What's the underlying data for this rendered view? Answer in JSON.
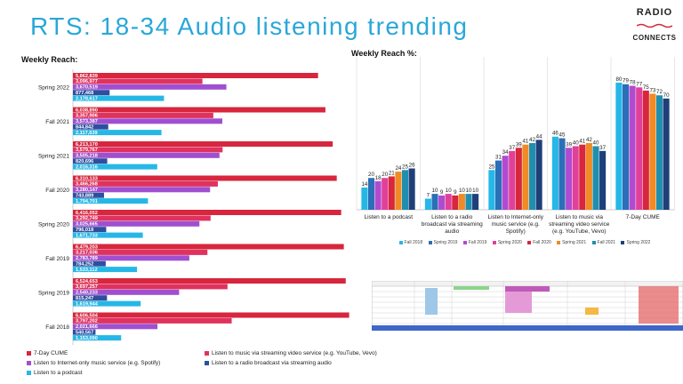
{
  "title": "RTS: 18-34 Audio listening trending",
  "logo": {
    "line1": "RADIO",
    "line2": "CONNECTS"
  },
  "colors": {
    "cume": "#d7263d",
    "video": "#b04bd0",
    "internet": "#9b6fd6",
    "broadcast": "#2e4f9e",
    "podcast": "#26b7e6"
  },
  "chart_data": [
    {
      "type": "bar",
      "orientation": "horizontal",
      "title": "Weekly Reach:",
      "categories": [
        "Spring 2022",
        "Fall 2021",
        "Spring 2021",
        "Fall 2020",
        "Spring 2020",
        "Fall 2019",
        "Spring 2019",
        "Fall 2018"
      ],
      "series": [
        {
          "name": "7-Day CUME",
          "color": "#d7263d",
          "labels": [
            "5,862,839",
            "6,038,890",
            "6,213,170",
            "6,310,133",
            "6,416,052",
            "6,479,203",
            "6,524,653",
            "6,606,504"
          ],
          "values": [
            5862839,
            6038890,
            6213170,
            6310133,
            6416052,
            6479203,
            6524653,
            6606504
          ]
        },
        {
          "name": "Listen to music via streaming video service (e.g. YouTube, Vevo)",
          "color": "#e0325f",
          "labels": [
            "3,096,977",
            "3,357,906",
            "3,579,767",
            "3,466,268",
            "3,292,749",
            "3,217,036",
            "3,697,257",
            "3,797,202"
          ],
          "values": [
            3096977,
            3357906,
            3579767,
            3466268,
            3292749,
            3217036,
            3697257,
            3797202
          ]
        },
        {
          "name": "Listen to Internet-only music service (e.g. Spotify)",
          "color": "#a04fd0",
          "labels": [
            "3,670,519",
            "3,573,387",
            "3,505,218",
            "3,280,147",
            "3,025,665",
            "2,783,789",
            "2,540,233",
            "2,021,666"
          ],
          "values": [
            3670519,
            3573387,
            3505218,
            3280147,
            3025665,
            2783789,
            2540233,
            2021666
          ]
        },
        {
          "name": "Listen to a radio broadcast via streaming audio",
          "color": "#2e4f9e",
          "labels": [
            "877,468",
            "844,842",
            "820,696",
            "743,889",
            "796,018",
            "784,252",
            "815,247",
            "540,567"
          ],
          "values": [
            877468,
            844842,
            820696,
            743889,
            796018,
            784252,
            815247,
            540567
          ]
        },
        {
          "name": "Listen to a podcast",
          "color": "#26b7e6",
          "labels": [
            "2,178,617",
            "2,117,639",
            "2,016,316",
            "1,794,701",
            "1,671,733",
            "1,533,112",
            "1,619,944",
            "1,153,090"
          ],
          "values": [
            2178617,
            2117639,
            2016316,
            1794701,
            1671733,
            1533112,
            1619944,
            1153090
          ]
        }
      ],
      "legend": [
        "7-Day CUME",
        "Listen to music via streaming video service (e.g. YouTube, Vevo)",
        "Listen to Internet-only music service (e.g. Spotify)",
        "Listen to a radio broadcast via streaming audio",
        "Listen to a podcast"
      ]
    },
    {
      "type": "bar",
      "title": "Weekly Reach %:",
      "categories": [
        "Listen to a podcast",
        "Listen to a radio broadcast via streaming audio",
        "Listen to Internet-only music service (e.g. Spotify)",
        "Listen to music via streaming video service (e.g. YouTube, Vevo)",
        "7-Day CUME"
      ],
      "series": [
        {
          "name": "Fall 2018",
          "color": "#26b7e6",
          "values": [
            14,
            7,
            25,
            46,
            80
          ]
        },
        {
          "name": "Spring 2019",
          "color": "#2a6fb8",
          "values": [
            20,
            10,
            31,
            45,
            79
          ]
        },
        {
          "name": "Fall 2019",
          "color": "#b04bd0",
          "values": [
            18,
            9,
            34,
            39,
            78
          ]
        },
        {
          "name": "Spring 2020",
          "color": "#e0409a",
          "values": [
            20,
            10,
            37,
            40,
            77
          ]
        },
        {
          "name": "Fall 2020",
          "color": "#d7263d",
          "values": [
            21,
            9,
            39,
            41,
            75
          ]
        },
        {
          "name": "Spring 2021",
          "color": "#f08a24",
          "values": [
            24,
            10,
            41,
            42,
            73
          ]
        },
        {
          "name": "Fall 2021",
          "color": "#1f8fb0",
          "values": [
            25,
            10,
            42,
            40,
            72
          ]
        },
        {
          "name": "Spring 2022",
          "color": "#1f3f7a",
          "values": [
            26,
            10,
            44,
            37,
            70
          ]
        }
      ],
      "ylim": [
        0,
        85
      ]
    }
  ]
}
